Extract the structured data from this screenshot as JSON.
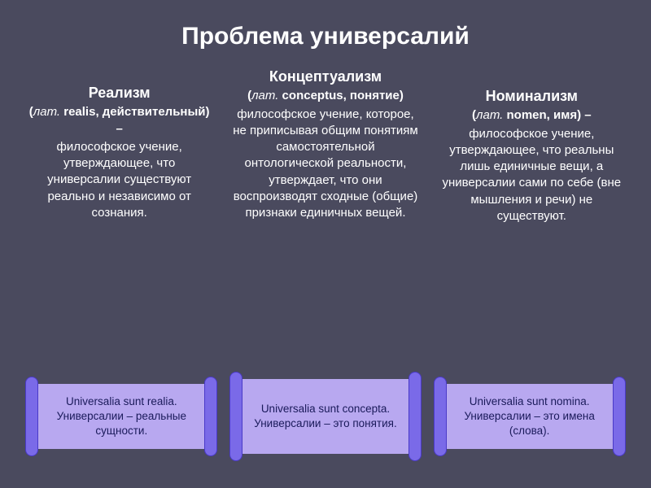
{
  "title": "Проблема универсалий",
  "columns": [
    {
      "heading": "Реализм",
      "sub_prefix": "(",
      "sub_latin": "лат.",
      "sub_rest": " realis, действительный) –",
      "body": "философское учение, утверждающее, что универсалии существуют реально и независимо от сознания."
    },
    {
      "heading": "Концептуализм",
      "sub_prefix": "(",
      "sub_latin": "лат.",
      "sub_rest": " conceptus, понятие)",
      "body": "философское учение, которое, не приписывая общим понятиям самостоятельной онтологической реальности, утверждает, что они воспроизводят сходные (общие) признаки единичных вещей."
    },
    {
      "heading": "Номинализм",
      "sub_prefix": "(",
      "sub_latin": "лат.",
      "sub_rest": " nomen, имя) –",
      "body": "философское учение, утверждающее, что реальны лишь единичные вещи, а универсалии сами по себе (вне мышления и речи) не существуют."
    }
  ],
  "scrolls": [
    {
      "latin": "Universalia sunt realia.",
      "ru": "Универсалии – реальные сущности."
    },
    {
      "latin": "Universalia sunt concepta.",
      "ru": "Универсалии – это понятия."
    },
    {
      "latin": "Universalia sunt nomina.",
      "ru": "Универсалии – это имена (слова)."
    }
  ],
  "colors": {
    "background": "#4a4a5e",
    "text": "#ffffff",
    "scroll_bg": "#b8a8f0",
    "scroll_roll": "#7a6ae8",
    "scroll_text": "#1a1a5a"
  }
}
